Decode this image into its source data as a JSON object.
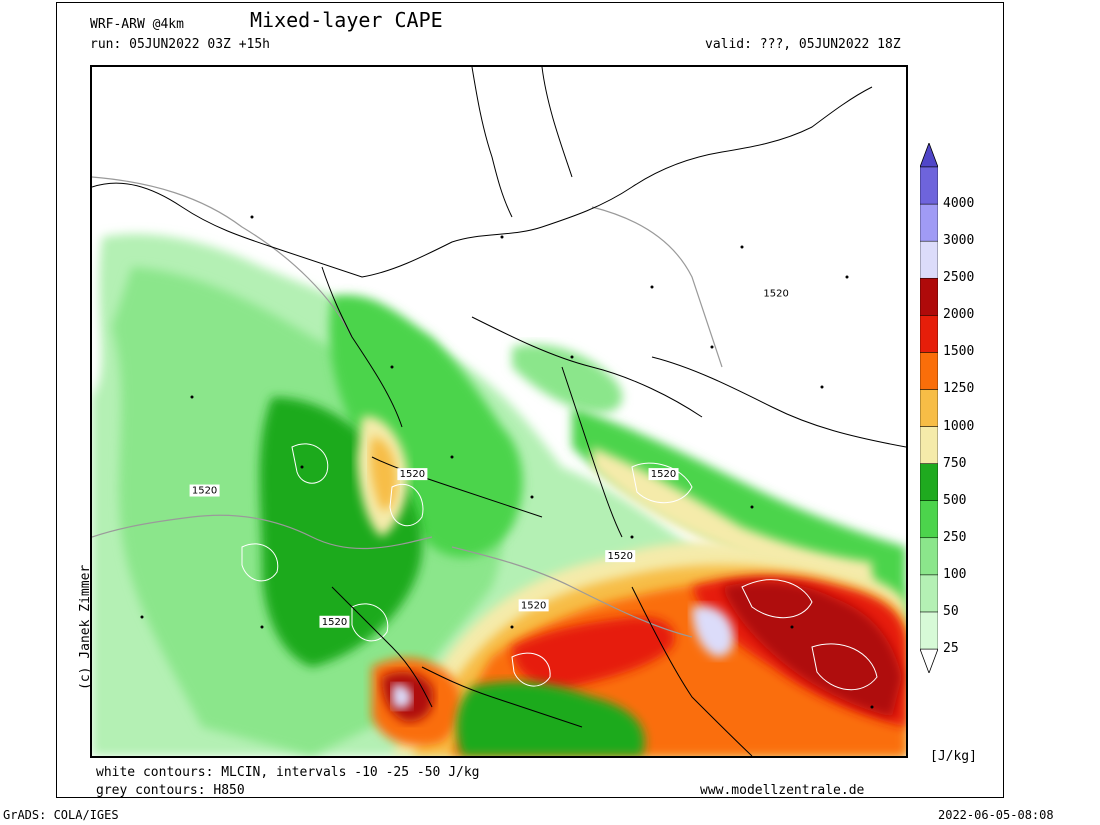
{
  "header": {
    "model": "WRF-ARW @4km",
    "title": "Mixed-layer CAPE",
    "run": "run: 05JUN2022 03Z +15h",
    "valid": "valid: ???, 05JUN2022 18Z"
  },
  "footer": {
    "white_contours": "white contours: MLCIN, intervals -10 -25 -50 J/kg",
    "grey_contours": "grey contours: H850",
    "website": "www.modellzentrale.de",
    "software": "GrADS: COLA/IGES",
    "timestamp": "2022-06-05-08:08",
    "copyright": "(c) Janek Zimmer"
  },
  "colorbar": {
    "unit": "[J/kg]",
    "levels": [
      {
        "label": "25",
        "color": "#d7fad7"
      },
      {
        "label": "50",
        "color": "#b4f0b4"
      },
      {
        "label": "100",
        "color": "#8be68b"
      },
      {
        "label": "250",
        "color": "#4cd44c"
      },
      {
        "label": "500",
        "color": "#1faa1f"
      },
      {
        "label": "750",
        "color": "#f5ebaa"
      },
      {
        "label": "1000",
        "color": "#f7bd46"
      },
      {
        "label": "1250",
        "color": "#fa6e0a"
      },
      {
        "label": "1500",
        "color": "#e61e0a"
      },
      {
        "label": "2000",
        "color": "#af0a0a"
      },
      {
        "label": "2500",
        "color": "#dcdcfa"
      },
      {
        "label": "3000",
        "color": "#a09bf5"
      },
      {
        "label": "4000",
        "color": "#6e64dc"
      }
    ],
    "top_color": "#5046c8",
    "bottom_color": "#ffffff"
  },
  "map": {
    "h850_labels": [
      {
        "text": "1520",
        "lon": 27.5,
        "lat": 52.0
      },
      {
        "text": "1520",
        "lon": -5.5,
        "lat": 46.0
      },
      {
        "text": "1520",
        "lon": 6.5,
        "lat": 46.5
      },
      {
        "text": "1520",
        "lon": 21.0,
        "lat": 46.5
      },
      {
        "text": "1520",
        "lon": 18.5,
        "lat": 44.0
      },
      {
        "text": "1520",
        "lon": 13.5,
        "lat": 42.5
      },
      {
        "text": "1520",
        "lon": 2.0,
        "lat": 42.0
      }
    ]
  }
}
